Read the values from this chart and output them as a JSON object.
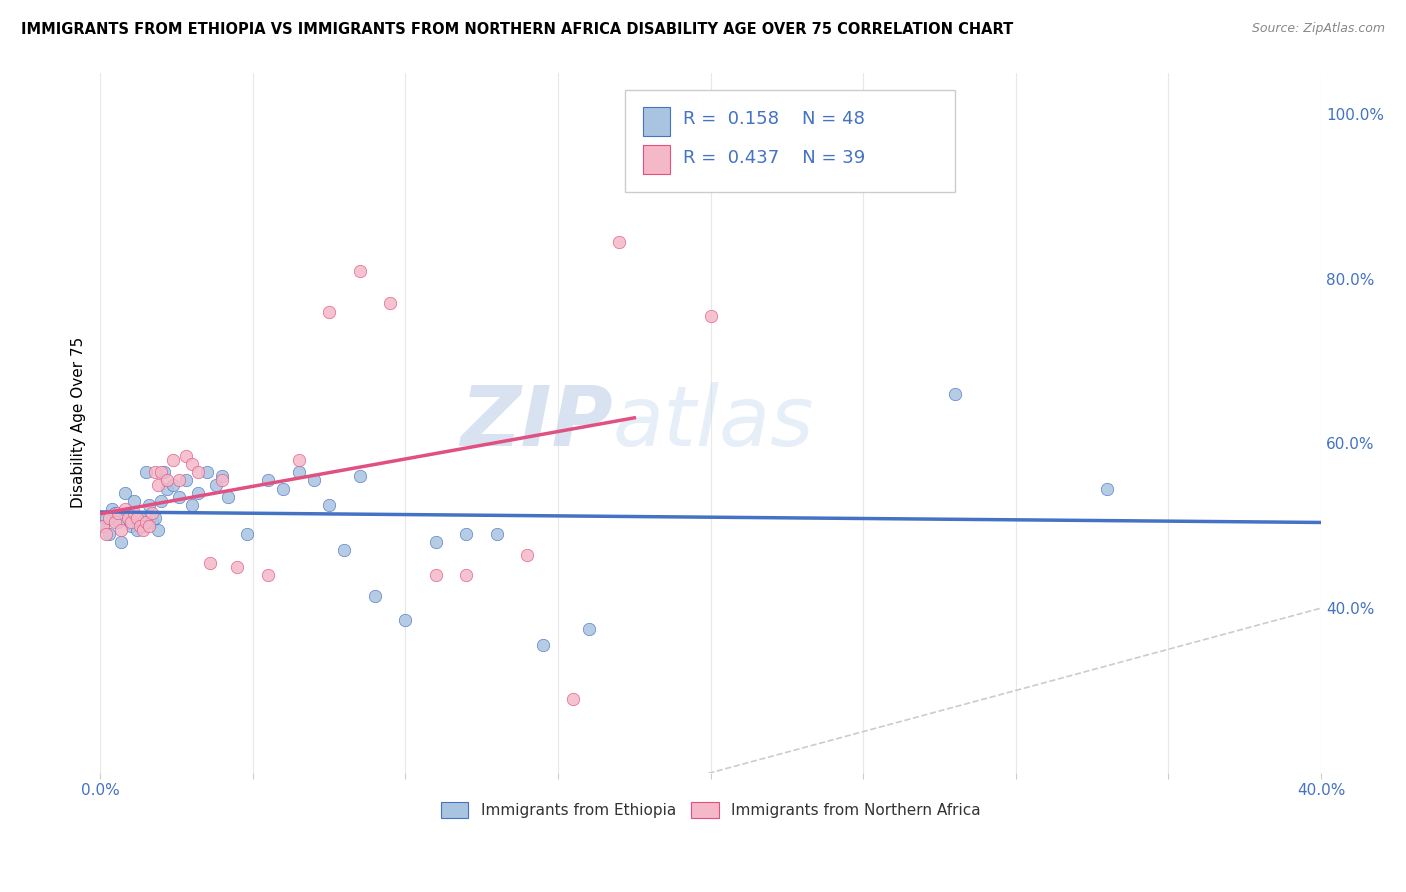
{
  "title": "IMMIGRANTS FROM ETHIOPIA VS IMMIGRANTS FROM NORTHERN AFRICA DISABILITY AGE OVER 75 CORRELATION CHART",
  "source": "Source: ZipAtlas.com",
  "ylabel_label": "Disability Age Over 75",
  "legend_label1": "Immigrants from Ethiopia",
  "legend_label2": "Immigrants from Northern Africa",
  "R1": 0.158,
  "N1": 48,
  "R2": 0.437,
  "N2": 39,
  "xlim": [
    0.0,
    0.4
  ],
  "ylim": [
    0.2,
    1.05
  ],
  "color1": "#a8c4e0",
  "color2": "#f4b8c8",
  "line_color1": "#4472c4",
  "line_color2": "#e05080",
  "diag_color": "#cccccc",
  "watermark_zip": "ZIP",
  "watermark_atlas": "atlas",
  "eth_x": [
    0.001,
    0.002,
    0.003,
    0.004,
    0.005,
    0.006,
    0.007,
    0.008,
    0.009,
    0.01,
    0.011,
    0.012,
    0.013,
    0.014,
    0.015,
    0.016,
    0.017,
    0.018,
    0.019,
    0.02,
    0.021,
    0.022,
    0.024,
    0.026,
    0.028,
    0.03,
    0.032,
    0.035,
    0.038,
    0.04,
    0.042,
    0.048,
    0.055,
    0.06,
    0.065,
    0.07,
    0.075,
    0.08,
    0.085,
    0.09,
    0.1,
    0.11,
    0.12,
    0.13,
    0.145,
    0.16,
    0.28,
    0.33
  ],
  "eth_y": [
    0.5,
    0.51,
    0.49,
    0.52,
    0.515,
    0.505,
    0.48,
    0.54,
    0.515,
    0.5,
    0.53,
    0.495,
    0.51,
    0.5,
    0.565,
    0.525,
    0.505,
    0.51,
    0.495,
    0.53,
    0.565,
    0.545,
    0.55,
    0.535,
    0.555,
    0.525,
    0.54,
    0.565,
    0.55,
    0.56,
    0.535,
    0.49,
    0.555,
    0.545,
    0.565,
    0.555,
    0.525,
    0.47,
    0.56,
    0.415,
    0.385,
    0.48,
    0.49,
    0.49,
    0.355,
    0.375,
    0.66,
    0.545
  ],
  "nor_x": [
    0.001,
    0.002,
    0.003,
    0.005,
    0.006,
    0.007,
    0.008,
    0.009,
    0.01,
    0.011,
    0.012,
    0.013,
    0.014,
    0.015,
    0.016,
    0.017,
    0.018,
    0.019,
    0.02,
    0.022,
    0.024,
    0.026,
    0.028,
    0.03,
    0.032,
    0.036,
    0.04,
    0.045,
    0.055,
    0.065,
    0.075,
    0.085,
    0.095,
    0.11,
    0.12,
    0.14,
    0.155,
    0.17,
    0.2
  ],
  "nor_y": [
    0.5,
    0.49,
    0.51,
    0.505,
    0.515,
    0.495,
    0.52,
    0.51,
    0.505,
    0.515,
    0.51,
    0.5,
    0.495,
    0.505,
    0.5,
    0.515,
    0.565,
    0.55,
    0.565,
    0.555,
    0.58,
    0.555,
    0.585,
    0.575,
    0.565,
    0.455,
    0.555,
    0.45,
    0.44,
    0.58,
    0.76,
    0.81,
    0.77,
    0.44,
    0.44,
    0.465,
    0.29,
    0.845,
    0.755
  ]
}
